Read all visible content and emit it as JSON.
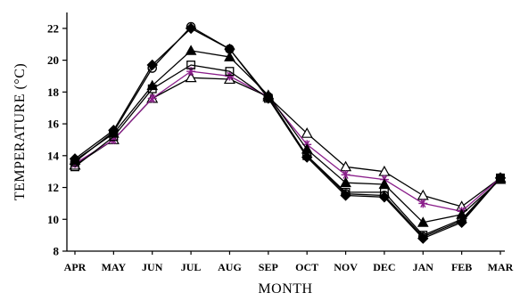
{
  "chart_data": {
    "type": "line",
    "title": "",
    "xlabel": "MONTH",
    "ylabel": "TEMPERATURE (°C)",
    "categories": [
      "APR",
      "MAY",
      "JUN",
      "JUL",
      "AUG",
      "SEP",
      "OCT",
      "NOV",
      "DEC",
      "JAN",
      "FEB",
      "MAR"
    ],
    "yticks": [
      "8",
      "10",
      "12",
      "14",
      "16",
      "18",
      "20",
      "22"
    ],
    "ylim": [
      8,
      23
    ],
    "grid": false,
    "legend": "none",
    "series": [
      {
        "marker": "diamond-filled",
        "color": "#000000",
        "values": [
          13.8,
          15.6,
          19.7,
          22.0,
          20.7,
          17.6,
          13.9,
          11.5,
          11.4,
          8.8,
          9.8,
          12.6
        ]
      },
      {
        "marker": "circle-open",
        "color": "#000000",
        "values": [
          13.6,
          15.5,
          19.5,
          22.1,
          20.7,
          17.7,
          14.0,
          11.6,
          11.5,
          8.9,
          9.9,
          12.6
        ]
      },
      {
        "marker": "triangle-filled",
        "color": "#000000",
        "values": [
          13.7,
          15.4,
          18.4,
          20.6,
          20.2,
          17.8,
          14.4,
          12.3,
          12.2,
          9.8,
          10.3,
          12.5
        ]
      },
      {
        "marker": "square-open",
        "color": "#000000",
        "values": [
          13.3,
          15.2,
          18.2,
          19.7,
          19.3,
          17.6,
          14.0,
          11.7,
          11.7,
          9.0,
          10.0,
          12.6
        ]
      },
      {
        "marker": "star",
        "color": "#8a1e8a",
        "values": [
          13.5,
          15.0,
          17.6,
          19.3,
          19.0,
          17.7,
          14.7,
          12.8,
          12.5,
          11.0,
          10.5,
          12.6
        ]
      },
      {
        "marker": "triangle-open",
        "color": "#000000",
        "values": [
          13.4,
          15.0,
          17.6,
          18.9,
          18.8,
          17.7,
          15.4,
          13.3,
          13.0,
          11.5,
          10.8,
          12.6
        ]
      }
    ]
  }
}
